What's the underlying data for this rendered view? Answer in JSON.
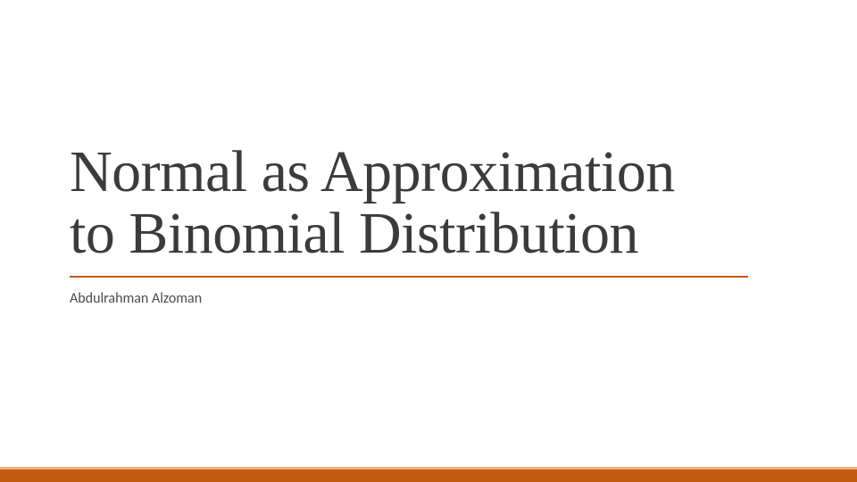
{
  "slide": {
    "title_line1": "Normal as Approximation",
    "title_line2": "to Binomial Distribution",
    "title_color": "#3b3b3b",
    "title_fontsize": 66,
    "underline_color": "#c55a11",
    "underline_width": 760,
    "author": "Abdulrahman Alzoman",
    "author_color": "#4a4a4a",
    "author_fontsize": 16,
    "background_color": "#ffffff"
  },
  "bottom_bar": {
    "stripe_color": "#f4b183",
    "main_color": "#c55a11",
    "main_height": 14
  }
}
